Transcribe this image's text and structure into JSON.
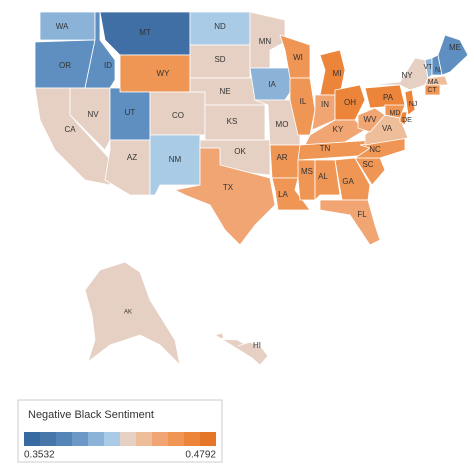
{
  "map": {
    "states": [
      {
        "label": "WA",
        "color": "#8bb3d8"
      },
      {
        "label": "OR",
        "color": "#5f8fc0"
      },
      {
        "label": "CA",
        "color": "#e6d0c3"
      },
      {
        "label": "NV",
        "color": "#e6d0c3"
      },
      {
        "label": "ID",
        "color": "#5f8fc0"
      },
      {
        "label": "MT",
        "color": "#3f6fa5"
      },
      {
        "label": "WY",
        "color": "#f09654"
      },
      {
        "label": "UT",
        "color": "#5f8fc0"
      },
      {
        "label": "AZ",
        "color": "#e6d0c3"
      },
      {
        "label": "CO",
        "color": "#e6d0c3"
      },
      {
        "label": "NM",
        "color": "#a9cbe6"
      },
      {
        "label": "ND",
        "color": "#a9cbe6"
      },
      {
        "label": "SD",
        "color": "#e6d0c3"
      },
      {
        "label": "NE",
        "color": "#e6d0c3"
      },
      {
        "label": "KS",
        "color": "#e6d0c3"
      },
      {
        "label": "OK",
        "color": "#e6d0c3"
      },
      {
        "label": "TX",
        "color": "#f1a573"
      },
      {
        "label": "MN",
        "color": "#e6d0c3"
      },
      {
        "label": "IA",
        "color": "#8bb3d8"
      },
      {
        "label": "MO",
        "color": "#e6d0c3"
      },
      {
        "label": "AR",
        "color": "#f09654"
      },
      {
        "label": "LA",
        "color": "#f09654"
      },
      {
        "label": "WI",
        "color": "#f09654"
      },
      {
        "label": "IL",
        "color": "#f09654"
      },
      {
        "label": "MI",
        "color": "#ec8539"
      },
      {
        "label": "IN",
        "color": "#f1a573"
      },
      {
        "label": "OH",
        "color": "#ec8539"
      },
      {
        "label": "KY",
        "color": "#f1a573"
      },
      {
        "label": "TN",
        "color": "#f09654"
      },
      {
        "label": "MS",
        "color": "#f09654"
      },
      {
        "label": "AL",
        "color": "#f09654"
      },
      {
        "label": "GA",
        "color": "#f09654"
      },
      {
        "label": "FL",
        "color": "#f1a573"
      },
      {
        "label": "SC",
        "color": "#f09654"
      },
      {
        "label": "NC",
        "color": "#f09654"
      },
      {
        "label": "VA",
        "color": "#eebd9a"
      },
      {
        "label": "WV",
        "color": "#f1a573"
      },
      {
        "label": "PA",
        "color": "#ec8539"
      },
      {
        "label": "NY",
        "color": "#e6d0c3"
      },
      {
        "label": "VT",
        "color": "#8bb3d8"
      },
      {
        "label": "NH",
        "color": "#5f8fc0"
      },
      {
        "label": "ME",
        "color": "#5f8fc0"
      },
      {
        "label": "MA",
        "color": "#eebd9a"
      },
      {
        "label": "CT",
        "color": "#f09654"
      },
      {
        "label": "NJ",
        "color": "#ec8539"
      },
      {
        "label": "DE",
        "color": "#ec8539"
      },
      {
        "label": "MD",
        "color": "#f09654"
      },
      {
        "label": "AK",
        "color": "#e6d0c3"
      },
      {
        "label": "HI",
        "color": "#e6d0c3"
      }
    ],
    "legend": {
      "title": "Negative Black Sentiment",
      "min": 0.3532,
      "max": 0.4792,
      "colors": [
        "#376aa0",
        "#4776ab",
        "#5585b7",
        "#6b98c6",
        "#8bb3d8",
        "#a9cbe6",
        "#e6d0c3",
        "#eebd9a",
        "#f1a573",
        "#f09654",
        "#ec8539",
        "#e57628"
      ]
    }
  }
}
